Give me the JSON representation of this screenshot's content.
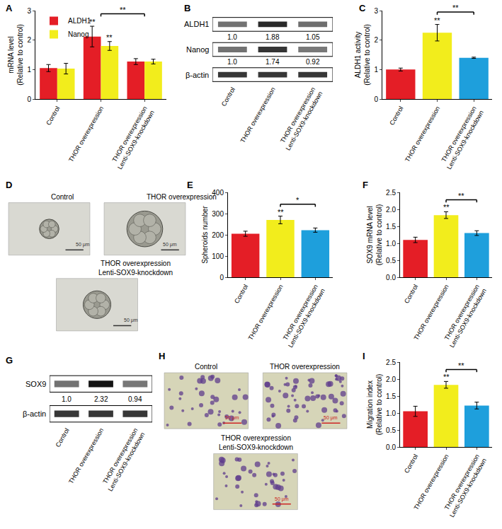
{
  "chart_data": [
    {
      "panel": "A",
      "type": "bar",
      "categories": [
        "Control",
        "THOR overexpression",
        "THOR overexpression\nLenti-SOX9-knockdown"
      ],
      "y_label": "mRNA level\n(Relative to control)",
      "ylim": [
        0,
        3
      ],
      "yticks": [
        0,
        1,
        2,
        3
      ],
      "legend": "upper left",
      "series": [
        {
          "name": "ALDH1",
          "color": "#e41e26",
          "values": [
            1.05,
            2.12,
            1.27
          ],
          "errors": [
            0.12,
            0.35,
            0.1
          ]
        },
        {
          "name": "Nanog",
          "color": "#f2ed1c",
          "values": [
            1.03,
            1.8,
            1.27
          ],
          "errors": [
            0.18,
            0.15,
            0.08
          ]
        }
      ],
      "significance": [
        {
          "series": 0,
          "category": 1,
          "text": "**"
        },
        {
          "series": 1,
          "category": 1,
          "text": "**"
        }
      ],
      "brackets": [
        {
          "from": 1,
          "to": 2,
          "text": "**"
        }
      ]
    },
    {
      "panel": "B",
      "type": "blot",
      "categories": [
        "Control",
        "THOR overexpression",
        "THOR overexpression\nLenti-SOX9-knockdown"
      ],
      "rows": [
        {
          "name": "ALDH1",
          "values": [
            1,
            1.88,
            1.05
          ],
          "value_labels": [
            "1.0",
            "1.88",
            "1.05"
          ]
        },
        {
          "name": "Nanog",
          "values": [
            1,
            1.74,
            0.92
          ],
          "value_labels": [
            "1.0",
            "1.74",
            "0.92"
          ]
        },
        {
          "name": "β-actin"
        }
      ]
    },
    {
      "panel": "C",
      "type": "bar",
      "categories": [
        "Control",
        "THOR overexpression",
        "THOR overexpression\nLenti-SOX9-knockdown"
      ],
      "y_label": "ALDH1 activity\n(Relative to control)",
      "ylim": [
        0,
        3
      ],
      "yticks": [
        0,
        1,
        2,
        3
      ],
      "values": [
        1.0,
        2.25,
        1.4
      ],
      "errors": [
        0.05,
        0.28,
        0.02
      ],
      "colors": [
        "#e41e26",
        "#f2ed1c",
        "#1e9fdc"
      ],
      "significance": [
        {
          "category": 1,
          "text": "**"
        }
      ],
      "brackets": [
        {
          "from": 1,
          "to": 2,
          "text": "**"
        }
      ]
    },
    {
      "panel": "D",
      "type": "image",
      "labels": [
        "Control",
        "THOR overexpression",
        "THOR overexpression\nLenti-SOX9-knockdown"
      ],
      "scale_bar": "50 μm"
    },
    {
      "panel": "E",
      "type": "bar",
      "categories": [
        "Control",
        "THOR overexpression",
        "THOR overexpression\nLenti-SOX9-knockdown"
      ],
      "y_label": "Spheroids number",
      "ylim": [
        0,
        400
      ],
      "yticks": [
        0,
        100,
        200,
        300,
        400
      ],
      "values": [
        205,
        270,
        222
      ],
      "errors": [
        12,
        18,
        10
      ],
      "colors": [
        "#e41e26",
        "#f2ed1c",
        "#1e9fdc"
      ],
      "significance": [
        {
          "category": 1,
          "text": "**"
        }
      ],
      "brackets": [
        {
          "from": 1,
          "to": 2,
          "text": "*"
        }
      ]
    },
    {
      "panel": "F",
      "type": "bar",
      "categories": [
        "Control",
        "THOR overexpression",
        "THOR overexpression\nLenti-SOX9-knockdown"
      ],
      "y_label": "SOX9 mRNA level\n(Relative to control)",
      "ylim": [
        0,
        2.5
      ],
      "yticks": [
        {
          "value": 0,
          "label": "0.0"
        },
        {
          "value": 0.5,
          "label": "0.5"
        },
        {
          "value": 1,
          "label": "1.0"
        },
        {
          "value": 1.5,
          "label": "1.5"
        },
        {
          "value": 2,
          "label": "2.0"
        },
        {
          "value": 2.5,
          "label": "2.5"
        }
      ],
      "values": [
        1.1,
        1.83,
        1.3
      ],
      "errors": [
        0.08,
        0.1,
        0.07
      ],
      "colors": [
        "#e41e26",
        "#f2ed1c",
        "#1e9fdc"
      ],
      "significance": [
        {
          "category": 1,
          "text": "**"
        }
      ],
      "brackets": [
        {
          "from": 1,
          "to": 2,
          "text": "**"
        }
      ]
    },
    {
      "panel": "G",
      "type": "blot",
      "categories": [
        "Control",
        "THOR overexpression",
        "THOR overexpression\nLenti-SOX9-knockdown"
      ],
      "rows": [
        {
          "name": "SOX9",
          "values": [
            1,
            2.32,
            0.94
          ],
          "value_labels": [
            "1.0",
            "2.32",
            "0.94"
          ]
        },
        {
          "name": "β-actin"
        }
      ]
    },
    {
      "panel": "H",
      "type": "image",
      "labels": [
        "Control",
        "THOR overexpression",
        "THOR overexpression\nLenti-SOX9-knockdown"
      ],
      "scale_bar": "50 μm"
    },
    {
      "panel": "I",
      "type": "bar",
      "categories": [
        "Control",
        "THOR overexpression",
        "THOR overexpression\nLenti-SOX9-knockdown"
      ],
      "y_label": "Migration index\n(Relative to control)",
      "ylim": [
        0,
        2.5
      ],
      "yticks": [
        {
          "value": 0,
          "label": "0.0"
        },
        {
          "value": 0.5,
          "label": "0.5"
        },
        {
          "value": 1,
          "label": "1.0"
        },
        {
          "value": 1.5,
          "label": "1.5"
        },
        {
          "value": 2,
          "label": "2.0"
        },
        {
          "value": 2.5,
          "label": "2.5"
        }
      ],
      "values": [
        1.05,
        1.83,
        1.22
      ],
      "errors": [
        0.15,
        0.1,
        0.1
      ],
      "colors": [
        "#e41e26",
        "#f2ed1c",
        "#1e9fdc"
      ],
      "significance": [
        {
          "category": 1,
          "text": "**"
        }
      ],
      "brackets": [
        {
          "from": 1,
          "to": 2,
          "text": "**"
        }
      ]
    }
  ]
}
